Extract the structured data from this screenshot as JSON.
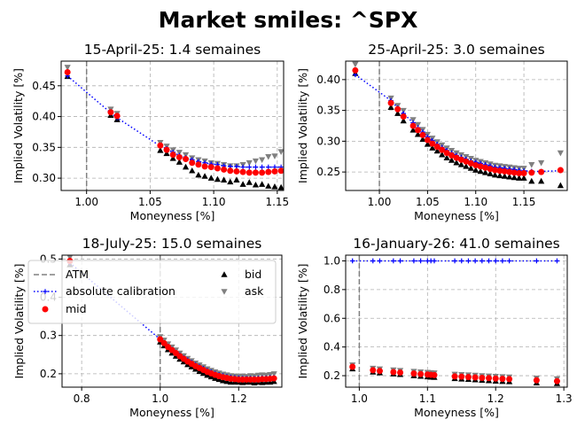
{
  "figure": {
    "title": "Market smiles: ^SPX"
  },
  "legend": {
    "entries": [
      {
        "label": "ATM",
        "marker": "dashed-line",
        "color": "#808080"
      },
      {
        "label": "absolute calibration",
        "marker": "dotted-plus",
        "color": "#0000ff"
      },
      {
        "label": "mid",
        "marker": "circle",
        "color": "#ff0000"
      },
      {
        "label": "bid",
        "marker": "triangle-up",
        "color": "#000000"
      },
      {
        "label": "ask",
        "marker": "triangle-down",
        "color": "#808080"
      }
    ]
  },
  "chart_data": [
    {
      "type": "scatter",
      "title": "15-April-25: 1.4 semaines",
      "xlabel": "Moneyness [%]",
      "ylabel": "Implied Volatility [%]",
      "xlim": [
        0.98,
        1.155
      ],
      "ylim": [
        0.28,
        0.49
      ],
      "xticks": [
        1.0,
        1.05,
        1.1,
        1.15
      ],
      "xtick_labels": [
        "1.00",
        "1.05",
        "1.10",
        "1.15"
      ],
      "yticks": [
        0.3,
        0.35,
        0.4,
        0.45
      ],
      "ytick_labels": [
        "0.30",
        "0.35",
        "0.40",
        "0.45"
      ],
      "atm": 1.0,
      "grid": true,
      "x": [
        0.985,
        1.019,
        1.024,
        1.058,
        1.063,
        1.068,
        1.073,
        1.078,
        1.083,
        1.088,
        1.093,
        1.098,
        1.103,
        1.108,
        1.113,
        1.118,
        1.123,
        1.128,
        1.133,
        1.138,
        1.143,
        1.148,
        1.153
      ],
      "series": [
        {
          "name": "absolute calibration",
          "values": [
            0.466,
            0.406,
            0.398,
            0.352,
            0.348,
            0.342,
            0.337,
            0.333,
            0.33,
            0.327,
            0.325,
            0.323,
            0.322,
            0.32,
            0.319,
            0.319,
            0.318,
            0.318,
            0.318,
            0.318,
            0.318,
            0.318,
            0.318
          ]
        },
        {
          "name": "mid",
          "values": [
            0.472,
            0.407,
            0.401,
            0.353,
            0.346,
            0.338,
            0.334,
            0.331,
            0.325,
            0.322,
            0.319,
            0.318,
            0.316,
            0.314,
            0.312,
            0.311,
            0.31,
            0.309,
            0.309,
            0.309,
            0.31,
            0.311,
            0.312
          ]
        },
        {
          "name": "bid",
          "values": [
            0.465,
            0.402,
            0.395,
            0.345,
            0.34,
            0.332,
            0.326,
            0.318,
            0.312,
            0.305,
            0.303,
            0.3,
            0.298,
            0.297,
            0.294,
            0.297,
            0.29,
            0.293,
            0.289,
            0.29,
            0.287,
            0.286,
            0.285
          ]
        },
        {
          "name": "ask",
          "values": [
            0.48,
            0.412,
            0.405,
            0.358,
            0.352,
            0.346,
            0.342,
            0.338,
            0.333,
            0.33,
            0.328,
            0.325,
            0.324,
            0.322,
            0.32,
            0.32,
            0.322,
            0.325,
            0.328,
            0.33,
            0.335,
            0.336,
            0.343
          ]
        }
      ]
    },
    {
      "type": "scatter",
      "title": "25-April-25: 3.0 semaines",
      "xlabel": "Moneyness [%]",
      "ylabel": "Implied Volatility [%]",
      "xlim": [
        0.965,
        1.195
      ],
      "ylim": [
        0.22,
        0.43
      ],
      "xticks": [
        1.0,
        1.05,
        1.1,
        1.15
      ],
      "xtick_labels": [
        "1.00",
        "1.05",
        "1.10",
        "1.15"
      ],
      "yticks": [
        0.25,
        0.3,
        0.35,
        0.4
      ],
      "ytick_labels": [
        "0.25",
        "0.30",
        "0.35",
        "0.40"
      ],
      "atm": 1.0,
      "grid": true,
      "x": [
        0.975,
        1.012,
        1.019,
        1.025,
        1.035,
        1.04,
        1.045,
        1.05,
        1.055,
        1.06,
        1.065,
        1.07,
        1.075,
        1.08,
        1.085,
        1.09,
        1.095,
        1.1,
        1.105,
        1.11,
        1.115,
        1.12,
        1.125,
        1.13,
        1.135,
        1.14,
        1.145,
        1.15,
        1.158,
        1.168,
        1.188
      ],
      "series": [
        {
          "name": "absolute calibration",
          "values": [
            0.408,
            0.366,
            0.354,
            0.345,
            0.33,
            0.322,
            0.315,
            0.307,
            0.301,
            0.295,
            0.29,
            0.285,
            0.281,
            0.277,
            0.274,
            0.271,
            0.268,
            0.266,
            0.264,
            0.262,
            0.26,
            0.258,
            0.257,
            0.256,
            0.255,
            0.254,
            0.253,
            0.252,
            0.251,
            0.251,
            0.252
          ]
        },
        {
          "name": "mid",
          "values": [
            0.415,
            0.362,
            0.352,
            0.34,
            0.325,
            0.318,
            0.31,
            0.302,
            0.296,
            0.291,
            0.286,
            0.281,
            0.277,
            0.273,
            0.27,
            0.267,
            0.264,
            0.261,
            0.259,
            0.257,
            0.255,
            0.253,
            0.252,
            0.251,
            0.25,
            0.249,
            0.248,
            0.248,
            0.249,
            0.25,
            0.253
          ]
        },
        {
          "name": "bid",
          "values": [
            0.41,
            0.355,
            0.345,
            0.333,
            0.318,
            0.311,
            0.303,
            0.295,
            0.289,
            0.284,
            0.278,
            0.273,
            0.269,
            0.265,
            0.262,
            0.259,
            0.256,
            0.253,
            0.251,
            0.249,
            0.247,
            0.245,
            0.244,
            0.243,
            0.242,
            0.241,
            0.24,
            0.24,
            0.235,
            0.235,
            0.228
          ]
        },
        {
          "name": "ask",
          "values": [
            0.425,
            0.37,
            0.358,
            0.35,
            0.335,
            0.327,
            0.319,
            0.311,
            0.305,
            0.299,
            0.294,
            0.289,
            0.285,
            0.281,
            0.278,
            0.275,
            0.272,
            0.269,
            0.267,
            0.265,
            0.263,
            0.261,
            0.26,
            0.259,
            0.258,
            0.257,
            0.256,
            0.256,
            0.262,
            0.265,
            0.281
          ]
        }
      ]
    },
    {
      "type": "scatter",
      "title": "18-July-25: 15.0 semaines",
      "xlabel": "Moneyness [%]",
      "ylabel": "Implied Volatility [%]",
      "xlim": [
        0.75,
        1.31
      ],
      "ylim": [
        0.165,
        0.51
      ],
      "xticks": [
        0.8,
        1.0,
        1.2
      ],
      "xtick_labels": [
        "0.8",
        "1.0",
        "1.2"
      ],
      "yticks": [
        0.2,
        0.3,
        0.4,
        0.5
      ],
      "ytick_labels": [
        "0.2",
        "0.3",
        "0.4",
        "0.5"
      ],
      "atm": 1.0,
      "grid": true,
      "x": [
        0.77,
        1.0,
        1.01,
        1.02,
        1.03,
        1.04,
        1.05,
        1.06,
        1.07,
        1.08,
        1.09,
        1.1,
        1.11,
        1.12,
        1.13,
        1.14,
        1.15,
        1.16,
        1.17,
        1.18,
        1.19,
        1.2,
        1.21,
        1.22,
        1.23,
        1.24,
        1.25,
        1.26,
        1.27,
        1.28,
        1.29
      ],
      "series": [
        {
          "name": "absolute calibration",
          "values": [
            0.49,
            0.29,
            0.281,
            0.272,
            0.264,
            0.256,
            0.249,
            0.242,
            0.236,
            0.23,
            0.224,
            0.219,
            0.214,
            0.209,
            0.205,
            0.201,
            0.198,
            0.195,
            0.193,
            0.191,
            0.19,
            0.189,
            0.188,
            0.188,
            0.188,
            0.188,
            0.188,
            0.189,
            0.189,
            0.19,
            0.19
          ]
        },
        {
          "name": "mid",
          "values": [
            0.495,
            0.29,
            0.28,
            0.27,
            0.262,
            0.254,
            0.246,
            0.239,
            0.232,
            0.226,
            0.22,
            0.215,
            0.21,
            0.205,
            0.201,
            0.197,
            0.194,
            0.191,
            0.189,
            0.187,
            0.186,
            0.185,
            0.185,
            0.185,
            0.185,
            0.185,
            0.185,
            0.186,
            0.186,
            0.187,
            0.188
          ]
        },
        {
          "name": "bid",
          "values": [
            0.485,
            0.283,
            0.273,
            0.263,
            0.254,
            0.246,
            0.238,
            0.231,
            0.224,
            0.218,
            0.212,
            0.206,
            0.201,
            0.196,
            0.192,
            0.188,
            0.185,
            0.182,
            0.18,
            0.178,
            0.178,
            0.178,
            0.177,
            0.178,
            0.178,
            0.176,
            0.178,
            0.177,
            0.178,
            0.178,
            0.18
          ]
        },
        {
          "name": "ask",
          "values": [
            0.505,
            0.297,
            0.288,
            0.278,
            0.27,
            0.262,
            0.254,
            0.247,
            0.24,
            0.234,
            0.228,
            0.223,
            0.218,
            0.213,
            0.209,
            0.205,
            0.202,
            0.199,
            0.197,
            0.195,
            0.194,
            0.193,
            0.194,
            0.193,
            0.195,
            0.194,
            0.196,
            0.197,
            0.196,
            0.198,
            0.2
          ]
        }
      ]
    },
    {
      "type": "scatter",
      "title": "16-January-26: 41.0 semaines",
      "xlabel": "Moneyness [%]",
      "ylabel": "Implied Volatility [%]",
      "xlim": [
        0.98,
        1.305
      ],
      "ylim": [
        0.12,
        1.04
      ],
      "xticks": [
        1.0,
        1.1,
        1.2,
        1.3
      ],
      "xtick_labels": [
        "1.0",
        "1.1",
        "1.2",
        "1.3"
      ],
      "yticks": [
        0.2,
        0.4,
        0.6,
        0.8,
        1.0
      ],
      "ytick_labels": [
        "0.2",
        "0.4",
        "0.6",
        "0.8",
        "1.0"
      ],
      "atm": 1.0,
      "grid": true,
      "x": [
        0.99,
        1.02,
        1.03,
        1.05,
        1.06,
        1.08,
        1.09,
        1.1,
        1.105,
        1.11,
        1.14,
        1.15,
        1.16,
        1.17,
        1.18,
        1.19,
        1.2,
        1.21,
        1.22,
        1.26,
        1.29
      ],
      "series": [
        {
          "name": "absolute calibration",
          "values": [
            1.0,
            1.0,
            1.0,
            1.0,
            1.0,
            1.0,
            1.0,
            1.0,
            1.0,
            1.0,
            1.0,
            1.0,
            1.0,
            1.0,
            1.0,
            1.0,
            1.0,
            1.0,
            1.0,
            1.0,
            1.0
          ]
        },
        {
          "name": "mid",
          "values": [
            0.262,
            0.238,
            0.233,
            0.225,
            0.222,
            0.215,
            0.211,
            0.208,
            0.206,
            0.204,
            0.195,
            0.193,
            0.19,
            0.188,
            0.185,
            0.183,
            0.18,
            0.178,
            0.176,
            0.168,
            0.162
          ]
        },
        {
          "name": "bid",
          "values": [
            0.248,
            0.225,
            0.22,
            0.212,
            0.208,
            0.2,
            0.196,
            0.192,
            0.19,
            0.188,
            0.18,
            0.177,
            0.174,
            0.171,
            0.168,
            0.165,
            0.162,
            0.16,
            0.158,
            0.15,
            0.145
          ]
        },
        {
          "name": "ask",
          "values": [
            0.275,
            0.252,
            0.247,
            0.24,
            0.236,
            0.23,
            0.226,
            0.223,
            0.221,
            0.219,
            0.21,
            0.208,
            0.205,
            0.203,
            0.2,
            0.198,
            0.195,
            0.193,
            0.191,
            0.183,
            0.178
          ]
        }
      ]
    }
  ]
}
